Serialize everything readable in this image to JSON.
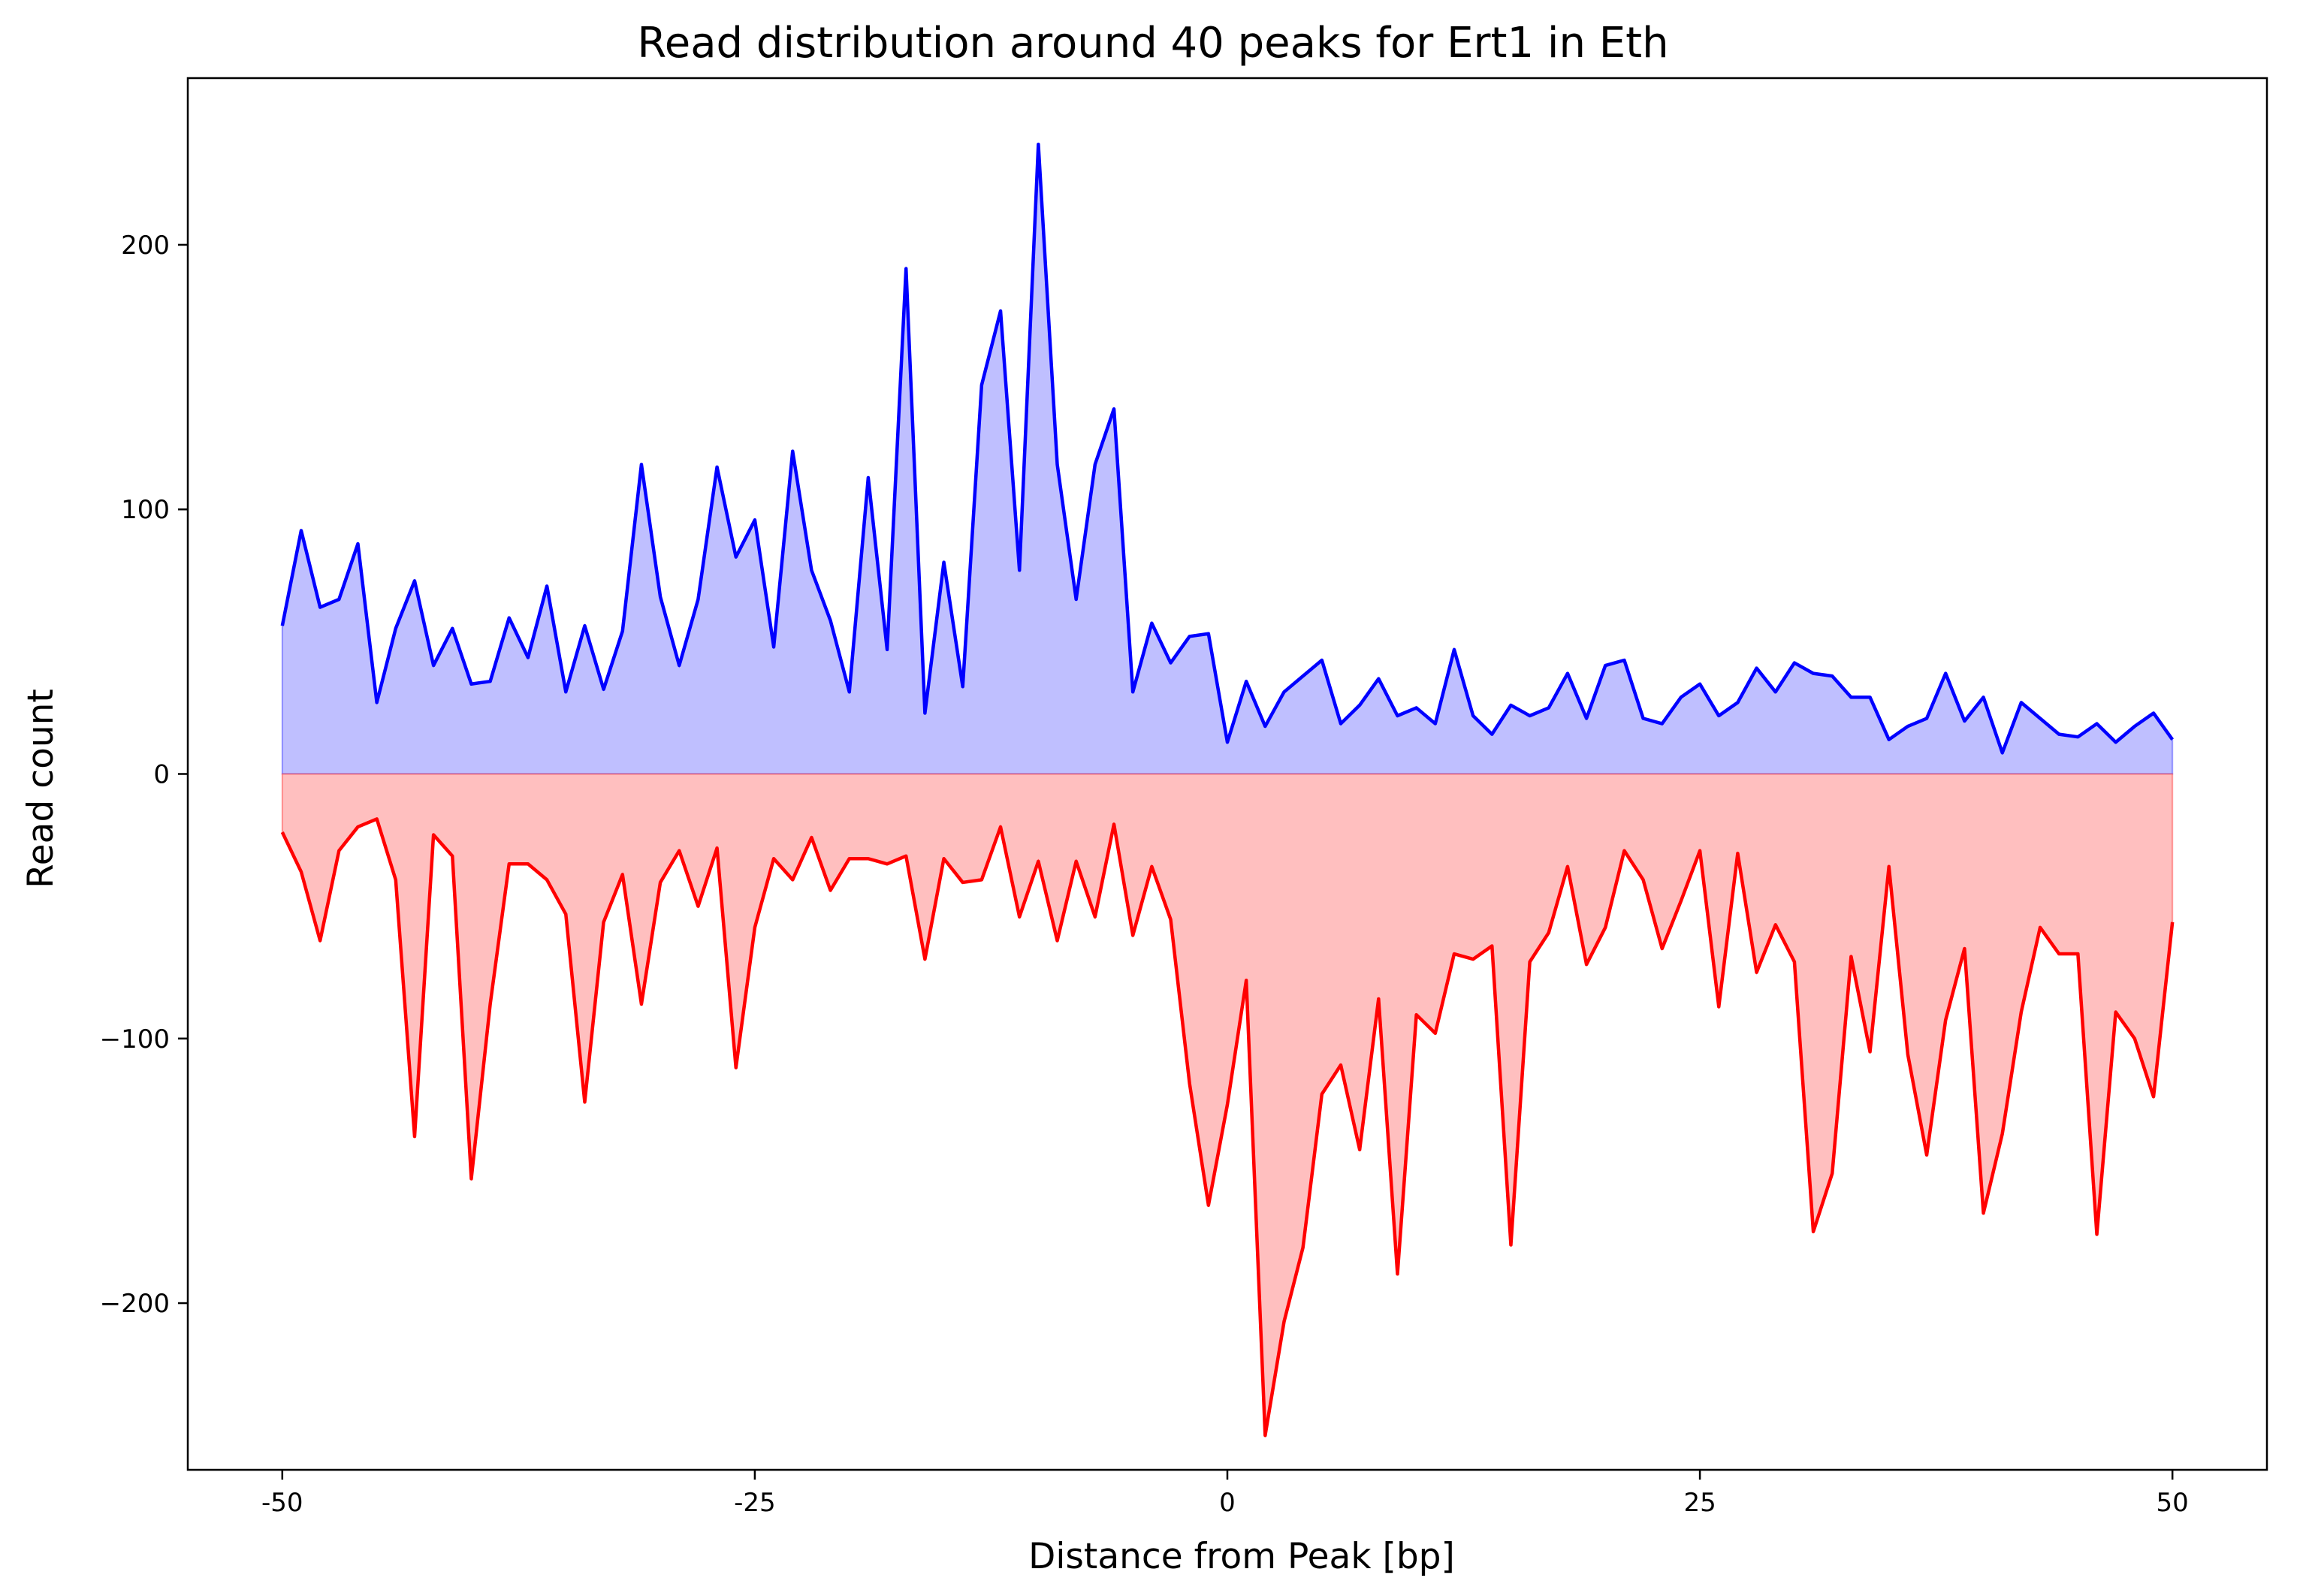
{
  "chart_data": {
    "type": "area",
    "title": "Read distribution around 40 peaks for Ert1 in Eth",
    "xlabel": "Distance from Peak [bp]",
    "ylabel": "Read count",
    "xlim": [
      -55,
      55
    ],
    "ylim": [
      -263,
      263
    ],
    "grid": false,
    "legend": "none",
    "x_ticks": [
      -50,
      -25,
      0,
      25,
      50
    ],
    "x_tick_labels": [
      "-50",
      "-25",
      "0",
      "25",
      "50"
    ],
    "y_ticks": [
      200,
      100,
      0,
      -100,
      -200
    ],
    "y_tick_labels": [
      "200",
      "100",
      "0",
      "−100",
      "−200"
    ],
    "x": [
      -50,
      -49,
      -48,
      -47,
      -46,
      -45,
      -44,
      -43,
      -42,
      -41,
      -40,
      -39,
      -38,
      -37,
      -36,
      -35,
      -34,
      -33,
      -32,
      -31,
      -30,
      -29,
      -28,
      -27,
      -26,
      -25,
      -24,
      -23,
      -22,
      -21,
      -20,
      -19,
      -18,
      -17,
      -16,
      -15,
      -14,
      -13,
      -12,
      -11,
      -10,
      -9,
      -8,
      -7,
      -6,
      -5,
      -4,
      -3,
      -2,
      -1,
      0,
      1,
      2,
      3,
      4,
      5,
      6,
      7,
      8,
      9,
      10,
      11,
      12,
      13,
      14,
      15,
      16,
      17,
      18,
      19,
      20,
      21,
      22,
      23,
      24,
      25,
      26,
      27,
      28,
      29,
      30,
      31,
      32,
      33,
      34,
      35,
      36,
      37,
      38,
      39,
      40,
      41,
      42,
      43,
      44,
      45,
      46,
      47,
      48,
      49,
      50
    ],
    "series": [
      {
        "color": "#0000ff",
        "fill": "#bfbfff",
        "values": [
          56,
          92,
          63,
          66,
          87,
          27,
          55,
          73,
          41,
          55,
          34,
          35,
          59,
          44,
          71,
          31,
          56,
          32,
          54,
          117,
          67,
          41,
          66,
          116,
          82,
          96,
          48,
          122,
          77,
          58,
          31,
          112,
          47,
          191,
          23,
          80,
          33,
          147,
          175,
          77,
          238,
          117,
          66,
          117,
          138,
          31,
          57,
          42,
          52,
          53,
          12,
          35,
          18,
          31,
          37,
          43,
          19,
          26,
          36,
          22,
          25,
          19,
          47,
          22,
          15,
          26,
          22,
          25,
          38,
          21,
          41,
          43,
          21,
          19,
          29,
          34,
          22,
          27,
          40,
          31,
          42,
          38,
          37,
          29,
          29,
          13,
          18,
          21,
          38,
          20,
          29,
          8,
          27,
          21,
          15,
          14,
          19,
          12,
          18,
          23,
          13
        ]
      },
      {
        "color": "#ff0000",
        "fill": "#ffbfbf",
        "values": [
          -22,
          -37,
          -63,
          -29,
          -20,
          -17,
          -40,
          -137,
          -23,
          -31,
          -153,
          -87,
          -34,
          -34,
          -40,
          -53,
          -124,
          -56,
          -38,
          -87,
          -41,
          -29,
          -50,
          -28,
          -111,
          -58,
          -32,
          -40,
          -24,
          -44,
          -32,
          -32,
          -34,
          -31,
          -70,
          -32,
          -41,
          -40,
          -20,
          -54,
          -33,
          -63,
          -33,
          -54,
          -19,
          -61,
          -35,
          -55,
          -117,
          -163,
          -125,
          -78,
          -250,
          -207,
          -179,
          -121,
          -110,
          -142,
          -85,
          -189,
          -91,
          -98,
          -68,
          -70,
          -65,
          -178,
          -71,
          -60,
          -35,
          -72,
          -58,
          -29,
          -40,
          -66,
          -48,
          -29,
          -88,
          -30,
          -75,
          -57,
          -71,
          -173,
          -151,
          -69,
          -105,
          -35,
          -106,
          -144,
          -93,
          -66,
          -166,
          -136,
          -90,
          -58,
          -68,
          -68,
          -174,
          -90,
          -100,
          -122,
          -56
        ]
      }
    ]
  }
}
